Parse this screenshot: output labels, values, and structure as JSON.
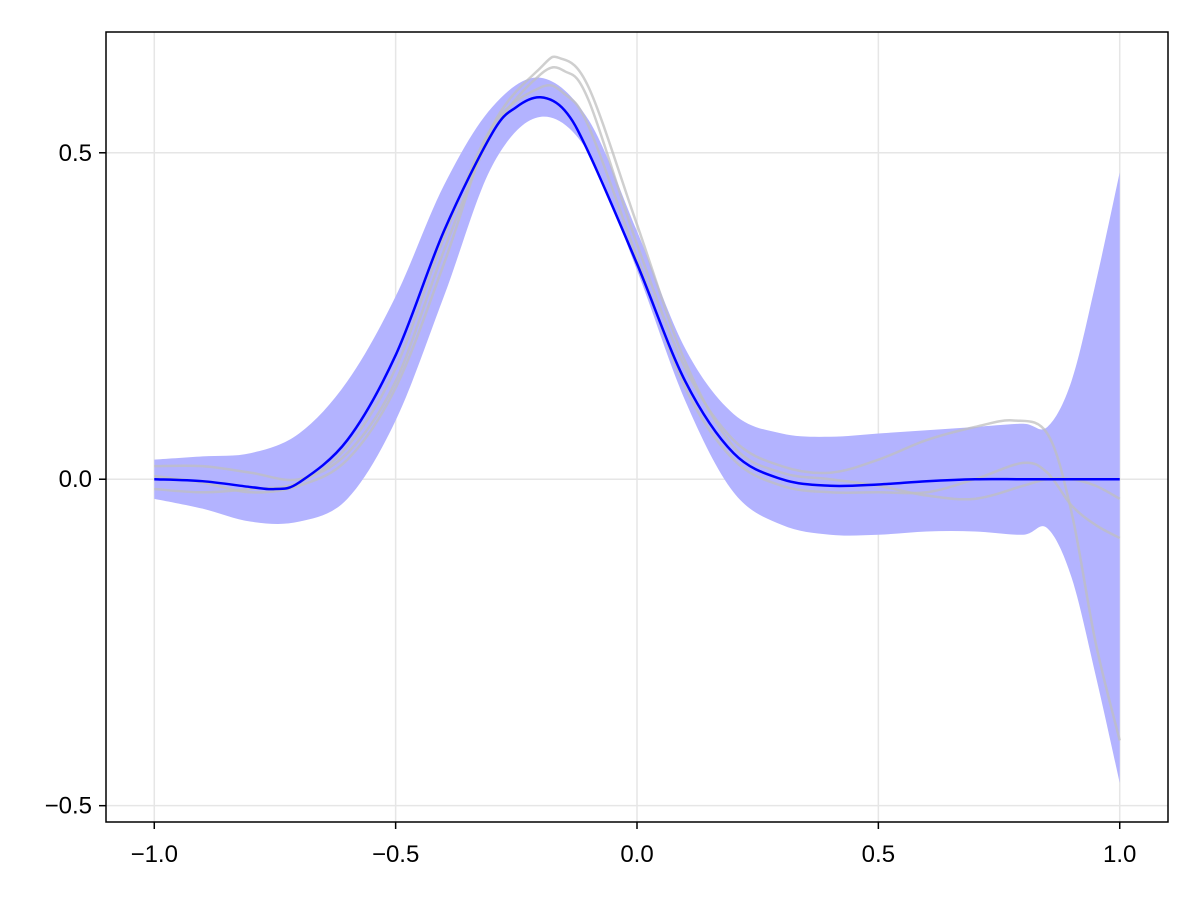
{
  "chart_data": {
    "type": "line",
    "title": "",
    "xlabel": "",
    "ylabel": "",
    "xlim": [
      -1.1,
      1.1
    ],
    "ylim": [
      -0.525,
      0.685
    ],
    "grid": true,
    "x_ticks": [
      -1.0,
      -0.5,
      0.0,
      0.5,
      1.0
    ],
    "x_tick_labels": [
      "−1.0",
      "−0.5",
      "0.0",
      "0.5",
      "1.0"
    ],
    "y_ticks": [
      -0.5,
      0.0,
      0.5
    ],
    "y_tick_labels": [
      "−0.5",
      "0.0",
      "0.5"
    ],
    "colors": {
      "mean": "#0000ff",
      "band": "#b3b3ff",
      "samples": "#bfbfbf",
      "grid": "#e6e6e6",
      "axes": "#000000"
    },
    "series": [
      {
        "role": "confidence band",
        "x": [
          -1.0,
          -0.9,
          -0.8,
          -0.7,
          -0.6,
          -0.5,
          -0.4,
          -0.3,
          -0.2,
          -0.1,
          0.0,
          0.1,
          0.2,
          0.3,
          0.4,
          0.5,
          0.6,
          0.7,
          0.8,
          0.85,
          0.9,
          0.95,
          1.0
        ],
        "upper": [
          0.03,
          0.035,
          0.04,
          0.07,
          0.15,
          0.28,
          0.45,
          0.57,
          0.615,
          0.55,
          0.38,
          0.2,
          0.1,
          0.07,
          0.065,
          0.07,
          0.075,
          0.08,
          0.085,
          0.08,
          0.15,
          0.3,
          0.47
        ],
        "lower": [
          -0.03,
          -0.045,
          -0.065,
          -0.065,
          -0.03,
          0.09,
          0.28,
          0.48,
          0.555,
          0.5,
          0.32,
          0.12,
          -0.02,
          -0.07,
          -0.085,
          -0.085,
          -0.08,
          -0.08,
          -0.085,
          -0.075,
          -0.15,
          -0.3,
          -0.465
        ]
      },
      {
        "role": "mean",
        "x": [
          -1.0,
          -0.9,
          -0.8,
          -0.75,
          -0.7,
          -0.6,
          -0.5,
          -0.4,
          -0.3,
          -0.25,
          -0.2,
          -0.15,
          -0.1,
          0.0,
          0.1,
          0.2,
          0.3,
          0.4,
          0.5,
          0.6,
          0.7,
          0.8,
          0.9,
          1.0
        ],
        "y": [
          0.0,
          -0.003,
          -0.012,
          -0.015,
          -0.005,
          0.06,
          0.19,
          0.38,
          0.53,
          0.57,
          0.585,
          0.565,
          0.5,
          0.33,
          0.15,
          0.04,
          0.0,
          -0.01,
          -0.008,
          -0.003,
          0.0,
          0.0,
          0.0,
          0.0
        ]
      },
      {
        "role": "sample",
        "x": [
          -1.0,
          -0.9,
          -0.8,
          -0.7,
          -0.6,
          -0.5,
          -0.4,
          -0.3,
          -0.2,
          -0.15,
          -0.1,
          0.0,
          0.1,
          0.2,
          0.3,
          0.4,
          0.5,
          0.6,
          0.7,
          0.78,
          0.85,
          0.9,
          0.95,
          1.0
        ],
        "y": [
          0.02,
          0.02,
          0.01,
          0.0,
          0.04,
          0.15,
          0.35,
          0.53,
          0.62,
          0.625,
          0.58,
          0.36,
          0.17,
          0.06,
          0.02,
          0.01,
          0.03,
          0.06,
          0.08,
          0.09,
          0.07,
          -0.05,
          -0.25,
          -0.4
        ]
      },
      {
        "role": "sample",
        "x": [
          -1.0,
          -0.9,
          -0.8,
          -0.7,
          -0.6,
          -0.5,
          -0.4,
          -0.3,
          -0.2,
          -0.15,
          -0.1,
          0.0,
          0.1,
          0.2,
          0.3,
          0.4,
          0.5,
          0.6,
          0.7,
          0.8,
          0.85,
          0.9,
          0.95,
          1.0
        ],
        "y": [
          -0.015,
          -0.02,
          -0.015,
          -0.005,
          0.05,
          0.17,
          0.37,
          0.54,
          0.6,
          0.59,
          0.54,
          0.34,
          0.14,
          0.03,
          -0.01,
          -0.02,
          -0.02,
          -0.02,
          0.0,
          0.025,
          0.01,
          -0.04,
          -0.07,
          -0.09
        ]
      },
      {
        "role": "sample",
        "x": [
          -1.0,
          -0.9,
          -0.8,
          -0.7,
          -0.6,
          -0.5,
          -0.4,
          -0.3,
          -0.2,
          -0.16,
          -0.1,
          0.0,
          0.1,
          0.2,
          0.3,
          0.4,
          0.5,
          0.6,
          0.7,
          0.8,
          0.85,
          0.9,
          0.95,
          1.0
        ],
        "y": [
          0.005,
          -0.005,
          -0.02,
          -0.01,
          0.03,
          0.14,
          0.33,
          0.54,
          0.63,
          0.645,
          0.6,
          0.39,
          0.18,
          0.05,
          0.01,
          0.0,
          -0.01,
          -0.025,
          -0.03,
          -0.01,
          0.0,
          0.0,
          -0.01,
          -0.03
        ]
      }
    ]
  }
}
